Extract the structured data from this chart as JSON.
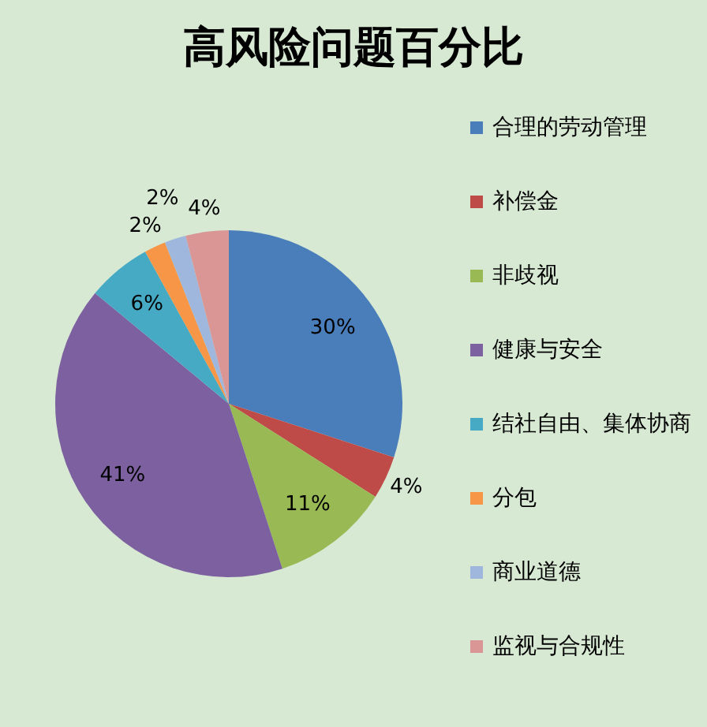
{
  "chart_data": {
    "type": "pie",
    "title": "高风险问题百分比",
    "categories": [
      "合理的劳动管理",
      "补偿金",
      "非歧视",
      "健康与安全",
      "结社自由、集体协商",
      "分包",
      "商业道德",
      "监视与合规性"
    ],
    "values": [
      30,
      4,
      11,
      41,
      6,
      2,
      2,
      4
    ],
    "colors": [
      "#4a7ebb",
      "#be4b48",
      "#98b954",
      "#7d60a0",
      "#46aac5",
      "#f79646",
      "#9fb7dd",
      "#d99694"
    ],
    "value_labels": [
      "30%",
      "4%",
      "11%",
      "41%",
      "6%",
      "2%",
      "2%",
      "4%"
    ],
    "legend": "right"
  }
}
